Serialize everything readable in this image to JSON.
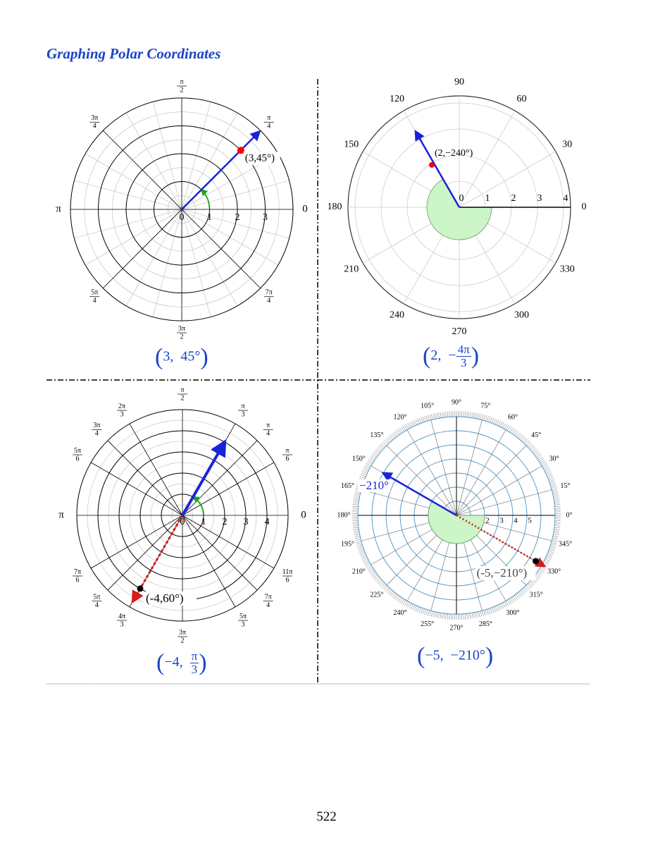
{
  "page": {
    "title": "Graphing Polar Coordinates",
    "page_number": "522"
  },
  "colors": {
    "title": "#1a44c8",
    "vector": "#1a23d8",
    "point_red": "#ff0000",
    "negative_vector": "#d91a1a",
    "arc_green": "#1aa81a",
    "sector_fill": "#ccf5c8",
    "grid_blue": "#4a93c2"
  },
  "diagrams": [
    {
      "id": "tl",
      "angle_labels": [
        "0",
        "π/4",
        "π/2",
        "3π/4",
        "π",
        "5π/4",
        "3π/2",
        "7π/4"
      ],
      "radial_labels": [
        "0",
        "1",
        "2",
        "3"
      ],
      "point": {
        "r": 3,
        "theta_deg": 45
      },
      "point_label": "(3,45°)",
      "caption": {
        "r": "3",
        "theta": "45°"
      }
    },
    {
      "id": "tr",
      "angle_labels": [
        "0",
        "30",
        "60",
        "90",
        "120",
        "150",
        "180",
        "210",
        "240",
        "270",
        "300",
        "330"
      ],
      "radial_labels": [
        "0",
        "1",
        "2",
        "3",
        "4"
      ],
      "point": {
        "r": 2,
        "theta_deg": -240
      },
      "point_label": "(2,−240°)",
      "caption": {
        "r": "2",
        "sign": "−",
        "num": "4π",
        "den": "3"
      }
    },
    {
      "id": "bl",
      "angle_labels": [
        "0",
        "π/6",
        "π/4",
        "π/3",
        "π/2",
        "2π/3",
        "3π/4",
        "5π/6",
        "π",
        "7π/6",
        "5π/4",
        "4π/3",
        "3π/2",
        "5π/3",
        "7π/4",
        "11π/6"
      ],
      "radial_labels": [
        "0",
        "1",
        "2",
        "3",
        "4"
      ],
      "point": {
        "r": -4,
        "theta_deg": 60
      },
      "point_label": "(-4,60°)",
      "caption": {
        "r": "−4",
        "num": "π",
        "den": "3"
      }
    },
    {
      "id": "br",
      "angle_labels": [
        "0°",
        "15°",
        "30°",
        "45°",
        "60°",
        "75°",
        "90°",
        "105°",
        "120°",
        "135°",
        "150°",
        "165°",
        "180°",
        "195°",
        "210°",
        "225°",
        "240°",
        "255°",
        "270°",
        "285°",
        "300°",
        "315°",
        "330°",
        "345°"
      ],
      "radial_labels": [
        "2",
        "3",
        "4",
        "5"
      ],
      "point": {
        "r": -5,
        "theta_deg": -210
      },
      "angle_label": "−210°",
      "point_label": "(-5,−210°)",
      "caption": {
        "r": "−5",
        "theta": "−210°"
      }
    }
  ]
}
